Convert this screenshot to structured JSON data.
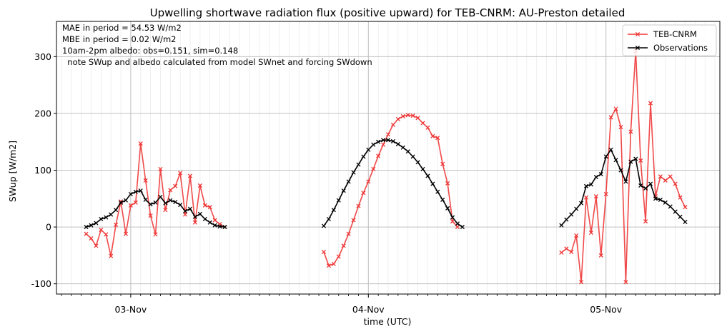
{
  "chart_data": {
    "type": "line",
    "title": "Upwelling shortwave radiation flux (positive upward) for TEB-CNRM: AU-Preston detailed",
    "xlabel": "time (UTC)",
    "ylabel": "SWup [W/m2]",
    "x_unit": "hours since 03-Nov 00:00 (UTC)",
    "xlim": [
      -7.5,
      59.5
    ],
    "ylim": [
      -118,
      362
    ],
    "yticks": [
      -100,
      0,
      100,
      200,
      300
    ],
    "xticks": [
      {
        "x": 0,
        "label": "03-Nov"
      },
      {
        "x": 24,
        "label": "04-Nov"
      },
      {
        "x": 48,
        "label": "05-Nov"
      }
    ],
    "grid": true,
    "legend_position": "top-right",
    "annotations": [
      "MAE in period = 54.53 W/m2",
      "MBE in period = 0.02 W/m2",
      "10am-2pm albedo: obs=0.151, sim=0.148",
      "  note SWup and albedo calculated from model SWnet and forcing SWdown"
    ],
    "series": [
      {
        "name": "TEB-CNRM",
        "color": "#ef3535",
        "segments": [
          [
            [
              -4.5,
              -12
            ],
            [
              -4,
              -20
            ],
            [
              -3.5,
              -33
            ],
            [
              -3,
              -5
            ],
            [
              -2.5,
              -13
            ],
            [
              -2,
              -51
            ],
            [
              -1.5,
              4
            ],
            [
              -1,
              45
            ],
            [
              -0.5,
              -12
            ],
            [
              0,
              38
            ],
            [
              0.5,
              43
            ],
            [
              1,
              147
            ],
            [
              1.5,
              82
            ],
            [
              2,
              20
            ],
            [
              2.5,
              -13
            ],
            [
              3,
              102
            ],
            [
              3.5,
              30
            ],
            [
              4,
              65
            ],
            [
              4.5,
              72
            ],
            [
              5,
              95
            ],
            [
              5.5,
              22
            ],
            [
              6,
              90
            ],
            [
              6.5,
              8
            ],
            [
              7,
              73
            ],
            [
              7.5,
              38
            ],
            [
              8,
              35
            ],
            [
              8.5,
              12
            ],
            [
              9,
              5
            ],
            [
              9.5,
              0
            ]
          ],
          [
            [
              19.5,
              -44
            ],
            [
              20,
              -68
            ],
            [
              20.5,
              -65
            ],
            [
              21,
              -52
            ],
            [
              21.5,
              -33
            ],
            [
              22,
              -12
            ],
            [
              22.5,
              12
            ],
            [
              23,
              37
            ],
            [
              23.5,
              60
            ],
            [
              24,
              80
            ],
            [
              24.5,
              102
            ],
            [
              25,
              125
            ],
            [
              25.5,
              145
            ],
            [
              26,
              163
            ],
            [
              26.5,
              180
            ],
            [
              27,
              190
            ],
            [
              27.5,
              195
            ],
            [
              28,
              197
            ],
            [
              28.5,
              196
            ],
            [
              29,
              192
            ],
            [
              29.5,
              183
            ],
            [
              30,
              175
            ],
            [
              30.5,
              160
            ],
            [
              31,
              157
            ],
            [
              31.5,
              111
            ],
            [
              32,
              77
            ],
            [
              32.5,
              10
            ],
            [
              33,
              0
            ]
          ],
          [
            [
              43.5,
              -45
            ],
            [
              44,
              -38
            ],
            [
              44.5,
              -44
            ],
            [
              45,
              -15
            ],
            [
              45.5,
              -97
            ],
            [
              46,
              52
            ],
            [
              46.5,
              -10
            ],
            [
              47,
              54
            ],
            [
              47.5,
              -50
            ],
            [
              48,
              58
            ],
            [
              48.5,
              193
            ],
            [
              49,
              208
            ],
            [
              49.5,
              176
            ],
            [
              50,
              -97
            ],
            [
              50.5,
              168
            ],
            [
              51,
              310
            ],
            [
              51.5,
              117
            ],
            [
              52,
              10
            ],
            [
              52.5,
              218
            ],
            [
              53,
              54
            ],
            [
              53.5,
              89
            ],
            [
              54,
              82
            ],
            [
              54.5,
              89
            ],
            [
              55,
              76
            ],
            [
              55.5,
              52
            ],
            [
              56,
              35
            ]
          ]
        ]
      },
      {
        "name": "Observations",
        "color": "#000000",
        "segments": [
          [
            [
              -4.5,
              0
            ],
            [
              -4,
              3
            ],
            [
              -3.5,
              7
            ],
            [
              -3,
              14
            ],
            [
              -2.5,
              17
            ],
            [
              -2,
              22
            ],
            [
              -1.5,
              30
            ],
            [
              -1,
              43
            ],
            [
              -0.5,
              47
            ],
            [
              0,
              58
            ],
            [
              0.5,
              62
            ],
            [
              1,
              64
            ],
            [
              1.5,
              48
            ],
            [
              2,
              40
            ],
            [
              2.5,
              43
            ],
            [
              3,
              53
            ],
            [
              3.5,
              42
            ],
            [
              4,
              47
            ],
            [
              4.5,
              44
            ],
            [
              5,
              39
            ],
            [
              5.5,
              28
            ],
            [
              6,
              32
            ],
            [
              6.5,
              18
            ],
            [
              7,
              23
            ],
            [
              7.5,
              14
            ],
            [
              8,
              8
            ],
            [
              8.5,
              3
            ],
            [
              9,
              1
            ],
            [
              9.5,
              0
            ]
          ],
          [
            [
              19.5,
              2
            ],
            [
              20,
              14
            ],
            [
              20.5,
              30
            ],
            [
              21,
              47
            ],
            [
              21.5,
              64
            ],
            [
              22,
              80
            ],
            [
              22.5,
              96
            ],
            [
              23,
              110
            ],
            [
              23.5,
              124
            ],
            [
              24,
              136
            ],
            [
              24.5,
              145
            ],
            [
              25,
              150
            ],
            [
              25.5,
              153
            ],
            [
              26,
              153
            ],
            [
              26.5,
              151
            ],
            [
              27,
              146
            ],
            [
              27.5,
              140
            ],
            [
              28,
              133
            ],
            [
              28.5,
              124
            ],
            [
              29,
              114
            ],
            [
              29.5,
              102
            ],
            [
              30,
              90
            ],
            [
              30.5,
              76
            ],
            [
              31,
              62
            ],
            [
              31.5,
              48
            ],
            [
              32,
              33
            ],
            [
              32.5,
              17
            ],
            [
              33,
              6
            ],
            [
              33.5,
              0
            ]
          ],
          [
            [
              43.5,
              3
            ],
            [
              44,
              13
            ],
            [
              44.5,
              22
            ],
            [
              45,
              32
            ],
            [
              45.5,
              42
            ],
            [
              46,
              72
            ],
            [
              46.5,
              75
            ],
            [
              47,
              88
            ],
            [
              47.5,
              93
            ],
            [
              48,
              124
            ],
            [
              48.5,
              136
            ],
            [
              49,
              118
            ],
            [
              49.5,
              100
            ],
            [
              50,
              80
            ],
            [
              50.5,
              115
            ],
            [
              51,
              120
            ],
            [
              51.5,
              73
            ],
            [
              52,
              68
            ],
            [
              52.5,
              76
            ],
            [
              53,
              50
            ],
            [
              53.5,
              48
            ],
            [
              54,
              43
            ],
            [
              54.5,
              36
            ],
            [
              55,
              27
            ],
            [
              55.5,
              18
            ],
            [
              56,
              9
            ]
          ]
        ]
      }
    ]
  }
}
